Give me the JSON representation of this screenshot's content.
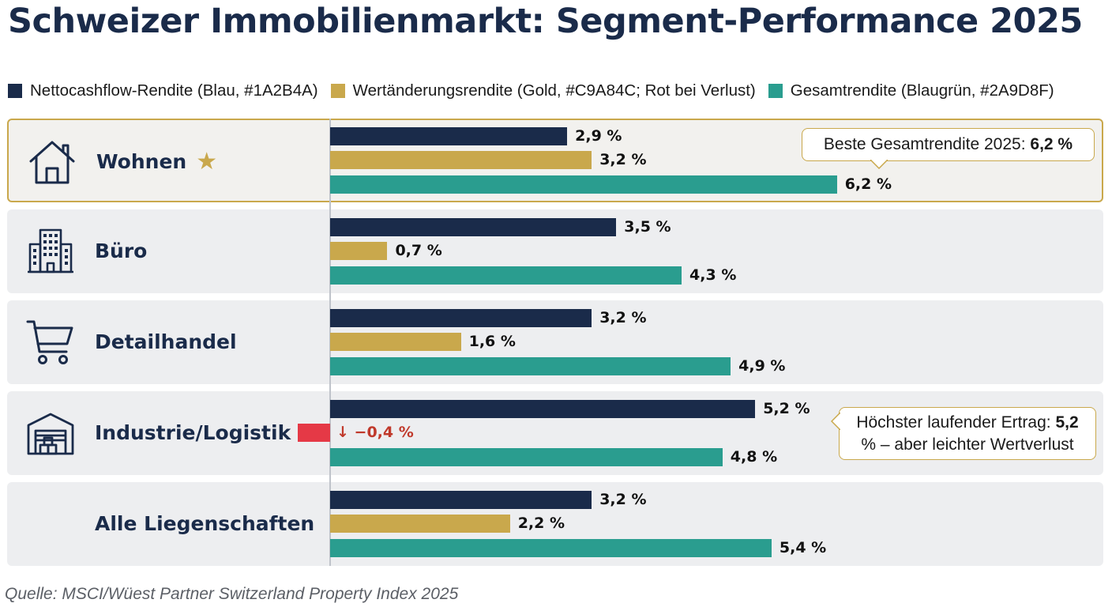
{
  "title": "Schweizer Immobilienmarkt: Segment-Performance 2025",
  "legend": [
    {
      "label": "Nettocashflow-Rendite (Blau, #1A2B4A)",
      "color": "#1A2B4A"
    },
    {
      "label": "Wertänderungsrendite (Gold, #C9A84C; Rot bei Verlust)",
      "color": "#C9A84C"
    },
    {
      "label": "Gesamtrendite (Blaugrün, #2A9D8F)",
      "color": "#2A9D8F"
    }
  ],
  "colors": {
    "cashflow": "#1A2B4A",
    "value": "#C9A84C",
    "loss": "#E53946",
    "total": "#2A9D8F"
  },
  "chart_data": {
    "type": "bar",
    "orientation": "horizontal",
    "categories": [
      "Wohnen",
      "Büro",
      "Detailhandel",
      "Industrie/Logistik",
      "Alle Liegenschaften"
    ],
    "category_icons": [
      "house-icon",
      "office-building-icon",
      "shopping-cart-icon",
      "warehouse-icon",
      ""
    ],
    "highlighted_category": "Wohnen",
    "series": [
      {
        "name": "Nettocashflow-Rendite",
        "values": [
          2.9,
          3.5,
          3.2,
          5.2,
          3.2
        ],
        "labels": [
          "2,9 %",
          "3,5 %",
          "3,2 %",
          "5,2 %",
          "3,2 %"
        ]
      },
      {
        "name": "Wertänderungsrendite",
        "values": [
          3.2,
          0.7,
          1.6,
          -0.4,
          2.2
        ],
        "labels": [
          "3,2 %",
          "0,7 %",
          "1,6 %",
          "↓ −0,4 %",
          "2,2 %"
        ]
      },
      {
        "name": "Gesamtrendite",
        "values": [
          6.2,
          4.3,
          4.9,
          4.8,
          5.4
        ],
        "labels": [
          "6,2 %",
          "4,3 %",
          "4,9 %",
          "4,8 %",
          "5,4 %"
        ]
      }
    ],
    "annotations": [
      {
        "category": "Wohnen",
        "text": "Beste Gesamtrendite 2025: ",
        "bold": "6,2 %"
      },
      {
        "category": "Industrie/Logistik",
        "text": "Höchster laufender Ertrag: ",
        "bold": "5,2",
        "text2": " % – aber leichter Wertverlust"
      }
    ],
    "source": "Quelle: MSCI/Wüest Partner Switzerland Property Index 2025"
  }
}
